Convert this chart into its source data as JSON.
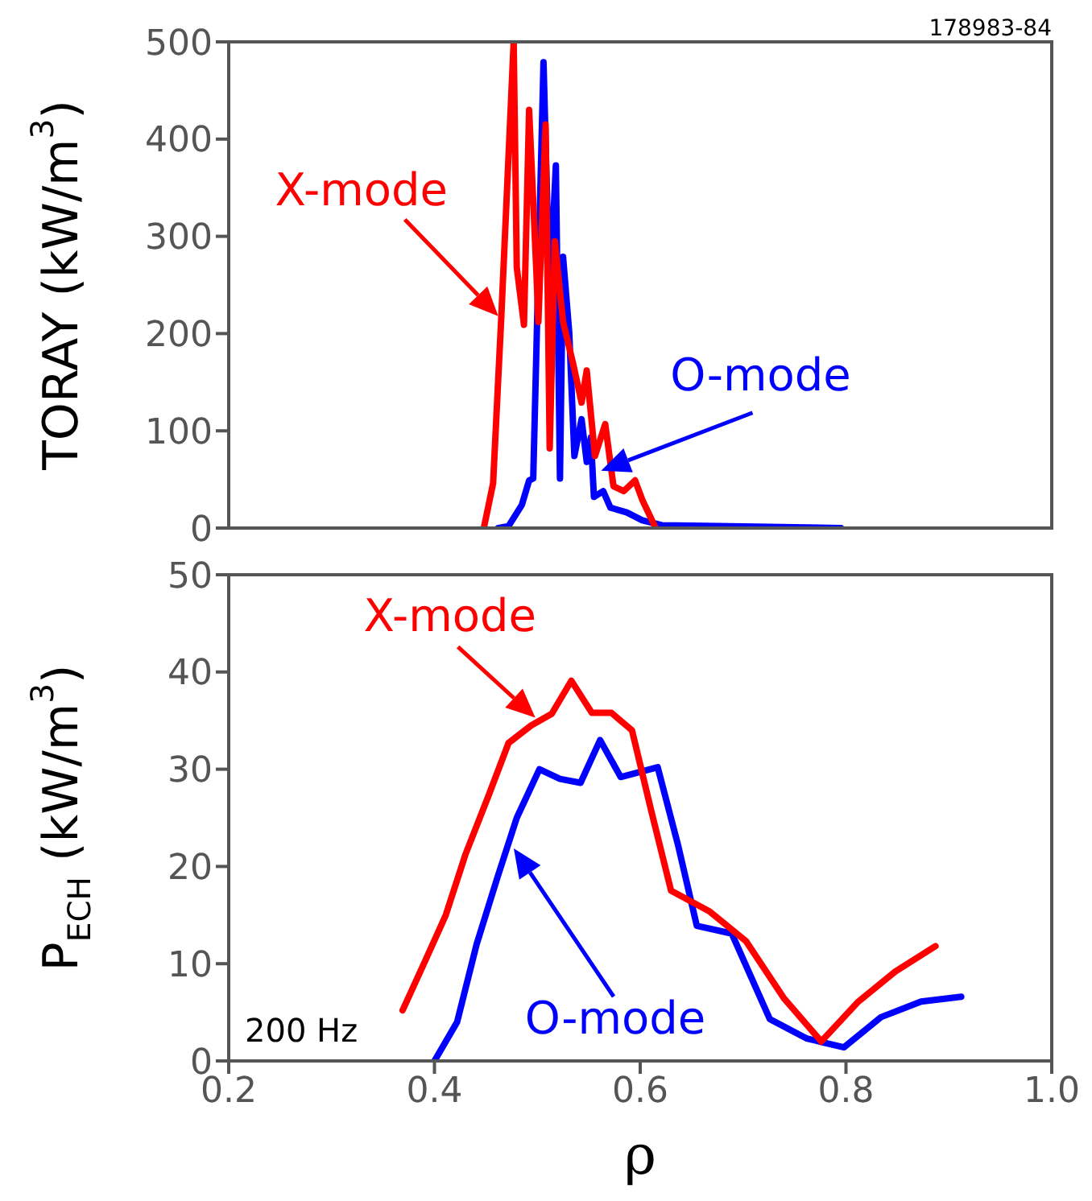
{
  "chart_data": [
    {
      "type": "line",
      "ylabel": "TORAY (kW/m$^{3}$)",
      "xlim": [
        0.2,
        1.0
      ],
      "ylim": [
        0,
        500
      ],
      "yticks": [
        0,
        100,
        200,
        300,
        400,
        500
      ],
      "tick_labels": "y",
      "series": [
        {
          "color": "#ff0000",
          "x": [
            0.448,
            0.457,
            0.465,
            0.477,
            0.48,
            0.487,
            0.492,
            0.499,
            0.501,
            0.508,
            0.512,
            0.517,
            0.525,
            0.535,
            0.543,
            0.548,
            0.556,
            0.566,
            0.574,
            0.584,
            0.595,
            0.602,
            0.615
          ],
          "values": [
            0,
            46,
            218,
            500,
            268,
            209,
            430,
            265,
            212,
            415,
            82,
            295,
            212,
            168,
            129,
            162,
            74,
            107,
            43,
            38,
            49,
            29,
            0
          ]
        },
        {
          "color": "#0000ff",
          "x": [
            0.462,
            0.472,
            0.485,
            0.492,
            0.496,
            0.506,
            0.512,
            0.518,
            0.522,
            0.525,
            0.531,
            0.536,
            0.543,
            0.548,
            0.552,
            0.555,
            0.564,
            0.571,
            0.587,
            0.602,
            0.621,
            0.675,
            0.795
          ],
          "values": [
            0,
            2,
            24,
            49,
            51,
            479,
            240,
            373,
            51,
            279,
            201,
            74,
            112,
            68,
            93,
            32,
            38,
            21,
            16,
            8,
            3,
            2,
            0
          ]
        }
      ],
      "annotations": [
        {
          "text": "X-mode",
          "x": 0.462,
          "y": 218
        },
        {
          "text": "O-mode",
          "x": 0.562,
          "y": 59
        },
        "178983-84"
      ]
    },
    {
      "type": "line",
      "ylabel": "P$_{ECH}$ (kW/m$^{3}$)",
      "xlabel": "ρ",
      "xlim": [
        0.2,
        1.0
      ],
      "ylim": [
        0,
        50
      ],
      "yticks": [
        0,
        10,
        20,
        30,
        40,
        50
      ],
      "xticks": [
        0.2,
        0.4,
        0.6,
        0.8,
        {
          "value": 1,
          "label": "1.0"
        }
      ],
      "series": [
        {
          "color": "#ff0000",
          "x": [
            0.369,
            0.391,
            0.411,
            0.43,
            0.453,
            0.472,
            0.494,
            0.514,
            0.533,
            0.553,
            0.572,
            0.592,
            0.611,
            0.63,
            0.667,
            0.703,
            0.74,
            0.776,
            0.812,
            0.848,
            0.887
          ],
          "values": [
            5.2,
            10.3,
            15.0,
            21.2,
            27.4,
            32.7,
            34.5,
            35.7,
            39.1,
            35.8,
            35.8,
            34.0,
            25.6,
            17.5,
            15.4,
            12.3,
            6.4,
            2.0,
            6.1,
            9.2,
            11.8
          ]
        },
        {
          "color": "#0000ff",
          "x": [
            0.4,
            0.422,
            0.441,
            0.461,
            0.48,
            0.502,
            0.522,
            0.542,
            0.561,
            0.581,
            0.617,
            0.637,
            0.655,
            0.689,
            0.726,
            0.762,
            0.798,
            0.834,
            0.873,
            0.912
          ],
          "values": [
            0,
            4.0,
            12.0,
            18.8,
            25.0,
            30.0,
            29.0,
            28.6,
            33.0,
            29.2,
            30.2,
            22.1,
            13.9,
            13.1,
            4.3,
            2.3,
            1.4,
            4.5,
            6.1,
            6.6
          ]
        }
      ],
      "annotations": [
        {
          "text": "X-mode",
          "x": 0.498,
          "y": 35.3
        },
        "O-mode",
        "200 Hz"
      ]
    }
  ]
}
